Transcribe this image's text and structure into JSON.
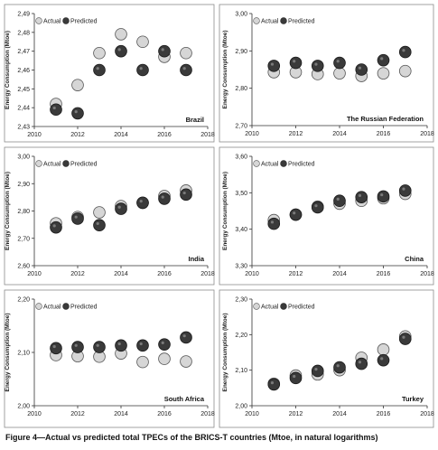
{
  "caption": "Figure 4—Actual vs predicted total TPECs of the BRICS-T countries (Mtoe, in natural logarithms)",
  "colors": {
    "actual_fill": "#d6d6d6",
    "predicted_fill": "#3a3a3a",
    "stroke": "#555555",
    "panel_border": "#8c8c8c"
  },
  "chart_data": [
    {
      "type": "scatter",
      "country": "Brazil",
      "ylabel": "Energy Consumption (Mtoe)",
      "xlim": [
        2010,
        2018
      ],
      "ylim": [
        2.43,
        2.49
      ],
      "xticks": [
        2010,
        2012,
        2014,
        2016,
        2018
      ],
      "ytick_labels": [
        "2,43",
        "2,44",
        "2,45",
        "2,46",
        "2,47",
        "2,48",
        "2,49"
      ],
      "legend": [
        "Actual",
        "Predicted"
      ],
      "legend_position": "top-left",
      "x": [
        2011,
        2012,
        2013,
        2014,
        2015,
        2016,
        2017
      ],
      "series": [
        {
          "name": "Actual",
          "values": [
            2.442,
            2.452,
            2.469,
            2.479,
            2.475,
            2.467,
            2.469
          ]
        },
        {
          "name": "Predicted",
          "values": [
            2.439,
            2.437,
            2.46,
            2.47,
            2.46,
            2.47,
            2.46
          ]
        }
      ]
    },
    {
      "type": "scatter",
      "country": "The Russian Federation",
      "ylabel": "Energy Consumption (Mtoe)",
      "xlim": [
        2010,
        2018
      ],
      "ylim": [
        2.7,
        3.0
      ],
      "xticks": [
        2010,
        2012,
        2014,
        2016,
        2018
      ],
      "ytick_labels": [
        "2,70",
        "2,80",
        "2,90",
        "3,00"
      ],
      "legend": [
        "Actual",
        "Predicted"
      ],
      "legend_position": "top-left",
      "x": [
        2011,
        2012,
        2013,
        2014,
        2015,
        2016,
        2017
      ],
      "series": [
        {
          "name": "Actual",
          "values": [
            2.843,
            2.843,
            2.838,
            2.84,
            2.833,
            2.84,
            2.846
          ]
        },
        {
          "name": "Predicted",
          "values": [
            2.86,
            2.868,
            2.86,
            2.868,
            2.85,
            2.875,
            2.897
          ]
        }
      ]
    },
    {
      "type": "scatter",
      "country": "India",
      "ylabel": "Energy Consumption (Mtoe)",
      "xlim": [
        2010,
        2018
      ],
      "ylim": [
        2.6,
        3.0
      ],
      "xticks": [
        2010,
        2012,
        2014,
        2016,
        2018
      ],
      "ytick_labels": [
        "2,60",
        "2,70",
        "2,80",
        "2,90",
        "3,00"
      ],
      "legend": [
        "Actual",
        "Predicted"
      ],
      "legend_position": "top-left",
      "x": [
        2011,
        2012,
        2013,
        2014,
        2015,
        2016,
        2017
      ],
      "series": [
        {
          "name": "Actual",
          "values": [
            2.755,
            2.778,
            2.795,
            2.818,
            2.83,
            2.855,
            2.875
          ]
        },
        {
          "name": "Predicted",
          "values": [
            2.74,
            2.772,
            2.748,
            2.808,
            2.83,
            2.845,
            2.86
          ]
        }
      ]
    },
    {
      "type": "scatter",
      "country": "China",
      "ylabel": "Energy Consumption (Mtoe)",
      "xlim": [
        2010,
        2018
      ],
      "ylim": [
        3.3,
        3.6
      ],
      "xticks": [
        2010,
        2012,
        2014,
        2016,
        2018
      ],
      "ytick_labels": [
        "3,30",
        "3,40",
        "3,50",
        "3,60"
      ],
      "legend": [
        "Actual",
        "Predicted"
      ],
      "legend_position": "top-left",
      "x": [
        2011,
        2012,
        2013,
        2014,
        2015,
        2016,
        2017
      ],
      "series": [
        {
          "name": "Actual",
          "values": [
            3.425,
            3.44,
            3.462,
            3.47,
            3.478,
            3.485,
            3.497
          ]
        },
        {
          "name": "Predicted",
          "values": [
            3.415,
            3.44,
            3.46,
            3.478,
            3.488,
            3.49,
            3.506
          ]
        }
      ]
    },
    {
      "type": "scatter",
      "country": "South Africa",
      "ylabel": "Energy Consumption (Mtoe)",
      "xlim": [
        2010,
        2018
      ],
      "ylim": [
        2.0,
        2.2
      ],
      "xticks": [
        2010,
        2012,
        2014,
        2016,
        2018
      ],
      "ytick_labels": [
        "2,00",
        "2,10",
        "2,20"
      ],
      "legend": [
        "Actual",
        "Predicted"
      ],
      "legend_position": "top-left",
      "x": [
        2011,
        2012,
        2013,
        2014,
        2015,
        2016,
        2017
      ],
      "series": [
        {
          "name": "Actual",
          "values": [
            2.095,
            2.093,
            2.092,
            2.098,
            2.082,
            2.088,
            2.083
          ]
        },
        {
          "name": "Predicted",
          "values": [
            2.108,
            2.11,
            2.11,
            2.113,
            2.113,
            2.115,
            2.128
          ]
        }
      ]
    },
    {
      "type": "scatter",
      "country": "Turkey",
      "ylabel": "Energy Consumption (Mtoe)",
      "xlim": [
        2010,
        2018
      ],
      "ylim": [
        2.0,
        2.3
      ],
      "xticks": [
        2010,
        2012,
        2014,
        2016,
        2018
      ],
      "ytick_labels": [
        "2,00",
        "2,10",
        "2,20",
        "2,30"
      ],
      "legend": [
        "Actual",
        "Predicted"
      ],
      "legend_position": "top-left",
      "x": [
        2011,
        2012,
        2013,
        2014,
        2015,
        2016,
        2017
      ],
      "series": [
        {
          "name": "Actual",
          "values": [
            2.062,
            2.085,
            2.088,
            2.1,
            2.135,
            2.158,
            2.195
          ]
        },
        {
          "name": "Predicted",
          "values": [
            2.06,
            2.078,
            2.098,
            2.108,
            2.118,
            2.128,
            2.188
          ]
        }
      ]
    }
  ]
}
